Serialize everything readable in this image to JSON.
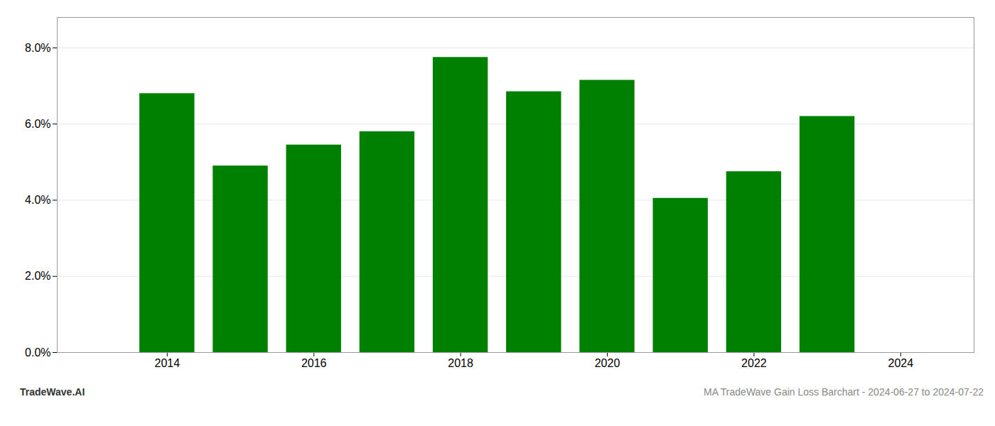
{
  "chart_data": {
    "type": "bar",
    "x": [
      2014,
      2015,
      2016,
      2017,
      2018,
      2019,
      2020,
      2021,
      2022,
      2023
    ],
    "values": [
      0.068,
      0.049,
      0.0545,
      0.058,
      0.0775,
      0.0685,
      0.0715,
      0.0405,
      0.0475,
      0.062
    ],
    "color": "#008000",
    "xlim": [
      2012.5,
      2025.0
    ],
    "xticks": [
      2014,
      2016,
      2018,
      2020,
      2022,
      2024
    ],
    "ylim": [
      0.0,
      0.088
    ],
    "yticks": [
      {
        "value": 0.0,
        "label": "0.0%"
      },
      {
        "value": 0.02,
        "label": "2.0%"
      },
      {
        "value": 0.04,
        "label": "4.0%"
      },
      {
        "value": 0.06,
        "label": "6.0%"
      },
      {
        "value": 0.08,
        "label": "8.0%"
      }
    ],
    "grid": true,
    "annotations": [
      "TradeWave.AI",
      "MA TradeWave Gain Loss Barchart - 2024-06-27 to 2024-07-22"
    ]
  }
}
